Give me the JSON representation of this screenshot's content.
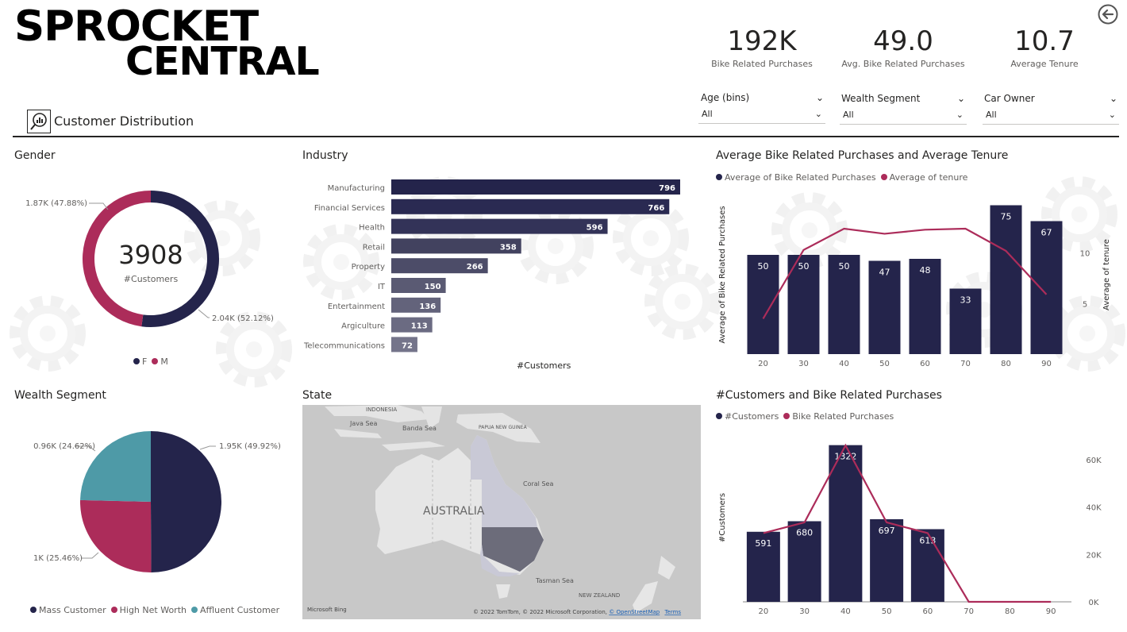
{
  "brand": {
    "line1": "SPROCKET",
    "line2": "CENTRAL"
  },
  "kpis": [
    {
      "value": "192K",
      "label": "Bike Related Purchases"
    },
    {
      "value": "49.0",
      "label": "Avg. Bike Related Purchases"
    },
    {
      "value": "10.7",
      "label": "Average Tenure"
    }
  ],
  "slicers": [
    {
      "title": "Age (bins)",
      "value": "All"
    },
    {
      "title": "Wealth Segment",
      "value": "All"
    },
    {
      "title": "Car Owner",
      "value": "All"
    }
  ],
  "page_tab": {
    "label": "Customer Distribution",
    "icon": "magnifier-chart-icon"
  },
  "colors": {
    "navy": "#24244b",
    "crimson": "#ac2c5a",
    "teal": "#4e9aa7",
    "text": "#252423",
    "muted": "#605e5c"
  },
  "chart_data": [
    {
      "type": "donut",
      "title": "Gender",
      "center_value": "3908",
      "center_label": "#Customers",
      "slices": [
        {
          "name": "F",
          "value": 2.04,
          "label": "2.04K (52.12%)"
        },
        {
          "name": "M",
          "value": 1.87,
          "label": "1.87K (47.88%)"
        }
      ],
      "legend": [
        "F",
        "M"
      ]
    },
    {
      "type": "bar",
      "orientation": "horizontal",
      "title": "Industry",
      "xlabel": "#Customers",
      "categories": [
        "Manufacturing",
        "Financial Services",
        "Health",
        "Retail",
        "Property",
        "IT",
        "Entertainment",
        "Argiculture",
        "Telecommunications"
      ],
      "values": [
        796,
        766,
        596,
        358,
        266,
        150,
        136,
        113,
        72
      ],
      "data_labels": [
        "796",
        "766",
        "596",
        "358",
        "266",
        "150",
        "136",
        "113",
        "72"
      ]
    },
    {
      "type": "bar+line",
      "title": "Average Bike Related Purchases and Average Tenure",
      "legend": [
        "Average of Bike Related Purchases",
        "Average of tenure"
      ],
      "ylabel": "Average of Bike Related Purchases",
      "y2label": "Average of tenure",
      "categories": [
        "20",
        "30",
        "40",
        "50",
        "60",
        "70",
        "80",
        "90"
      ],
      "bar_values": [
        50,
        50,
        50,
        47,
        48,
        33,
        75,
        67
      ],
      "bar_labels": [
        "50",
        "50",
        "50",
        "47",
        "48",
        "33",
        "75",
        "67"
      ],
      "line_values": [
        3.5,
        10.3,
        12.4,
        11.9,
        12.3,
        12.4,
        10.2,
        5.9
      ],
      "y2_ticks": [
        "5",
        "10"
      ],
      "y2_tick_values": [
        5,
        10
      ],
      "y2lim": [
        0,
        15.7
      ],
      "ylim": [
        0,
        80
      ]
    },
    {
      "type": "bar+line",
      "title": "#Customers and Bike Related Purchases",
      "legend": [
        "#Customers",
        "Bike Related Purchases"
      ],
      "ylabel": "#Customers",
      "categories": [
        "20",
        "30",
        "40",
        "50",
        "60",
        "70",
        "80",
        "90"
      ],
      "bar_values": [
        591,
        680,
        1322,
        697,
        613,
        0,
        0,
        0
      ],
      "bar_labels": [
        "591",
        "680",
        "1322",
        "697",
        "613",
        "",
        "",
        ""
      ],
      "line_values": [
        29000,
        33500,
        66000,
        33500,
        29000,
        0,
        0,
        0
      ],
      "y2_ticks": [
        "0K",
        "20K",
        "40K",
        "60K"
      ],
      "y2_tick_values": [
        0,
        20000,
        40000,
        60000
      ],
      "y2lim": [
        0,
        71000
      ],
      "ylim": [
        0,
        1420
      ]
    },
    {
      "type": "pie",
      "title": "Wealth Segment",
      "slices": [
        {
          "name": "Mass Customer",
          "value": 49.92,
          "label": "1.95K (49.92%)"
        },
        {
          "name": "High Net Worth",
          "value": 25.46,
          "label": "1K (25.46%)"
        },
        {
          "name": "Affluent Customer",
          "value": 24.62,
          "label": "0.96K (24.62%)"
        }
      ],
      "legend": [
        "Mass Customer",
        "High Net Worth",
        "Affluent Customer"
      ]
    }
  ],
  "map": {
    "title": "State",
    "labels": {
      "country": "AUSTRALIA",
      "indonesia": "INDONESIA",
      "java_sea": "Java Sea",
      "banda_sea": "Banda Sea",
      "png": "PAPUA NEW GUINEA",
      "coral_sea": "Coral Sea",
      "tasman_sea": "Tasman Sea",
      "nz": "NEW ZEALAND"
    },
    "bing": "Microsoft Bing",
    "attribution": "© 2022 TomTom, © 2022 Microsoft Corporation,",
    "osm_link": "© OpenStreetMap",
    "terms_link": "Terms"
  }
}
